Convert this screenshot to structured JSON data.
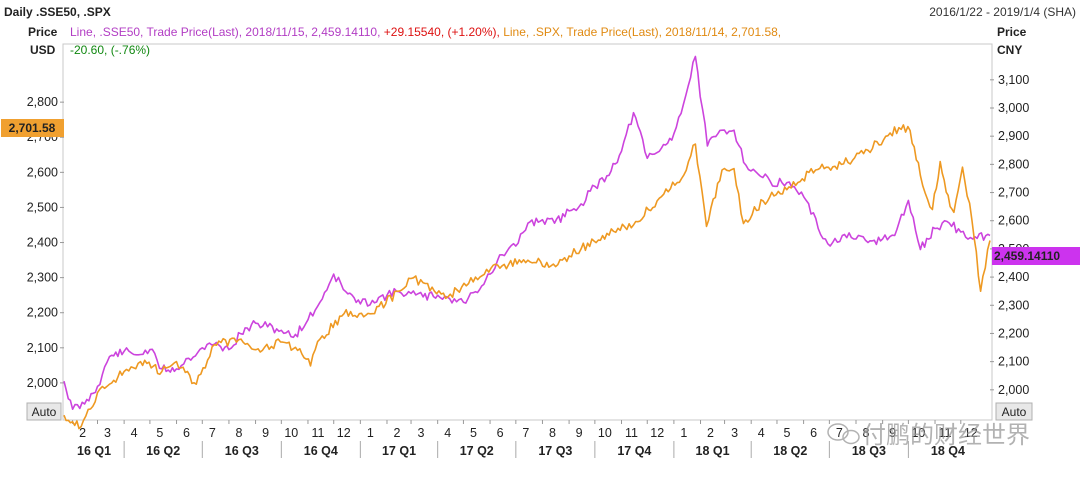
{
  "header": {
    "title": "Daily .SSE50, .SPX",
    "date_range": "2016/1/22 - 2019/1/4 (SHA)"
  },
  "left_axis": {
    "label1": "Price",
    "label2": "USD",
    "auto": "Auto"
  },
  "right_axis": {
    "label1": "Price",
    "label2": "CNY",
    "auto": "Auto"
  },
  "legend": {
    "sse_part1": "Line, .SSE50, Trade Price(Last), 2018/11/15, 2,459.14110, ",
    "sse_change": "+29.15540, (+1.20%), ",
    "spx_part1": "Line, .SPX, Trade Price(Last), 2018/11/14, 2,701.58,",
    "spx_change": "-20.60, (-.76%)"
  },
  "badges": {
    "spx_last": "2,701.58",
    "sse_last": "2,459.14110"
  },
  "watermark": "付鹏的财经世界",
  "colors": {
    "sse": "#cc44dd",
    "spx": "#ee9922",
    "sse_text": "#b23dc4",
    "spx_text": "#e08a12",
    "up": "#dd1111",
    "down": "#118811",
    "badge_spx": "#f0a030",
    "badge_sse": "#cc33ee"
  },
  "chart_data": {
    "type": "line",
    "title": "Daily .SSE50, .SPX",
    "date_range": "2016/1/22 - 2019/1/4",
    "left_axis": {
      "unit": "USD",
      "ylim": [
        1900,
        2960
      ],
      "ticks": [
        "2,000",
        "2,100",
        "2,200",
        "2,300",
        "2,400",
        "2,500",
        "2,600",
        "2,700",
        "2,800"
      ]
    },
    "right_axis": {
      "unit": "CNY",
      "ylim": [
        1900,
        3220
      ],
      "ticks": [
        "2,000",
        "2,100",
        "2,200",
        "2,300",
        "2,400",
        "2,500",
        "2,600",
        "2,700",
        "2,800",
        "2,900",
        "3,000",
        "3,100"
      ]
    },
    "month_ticks": [
      "2",
      "3",
      "4",
      "5",
      "6",
      "7",
      "8",
      "9",
      "10",
      "11",
      "12",
      "1",
      "2",
      "3",
      "4",
      "5",
      "6",
      "7",
      "8",
      "9",
      "10",
      "11",
      "12",
      "1",
      "2",
      "3",
      "4",
      "5",
      "6",
      "7",
      "8",
      "9",
      "10",
      "11",
      "12"
    ],
    "quarters": [
      "16 Q1",
      "16 Q2",
      "16 Q3",
      "16 Q4",
      "17 Q1",
      "17 Q2",
      "17 Q3",
      "17 Q4",
      "18 Q1",
      "18 Q2",
      "18 Q3",
      "18 Q4"
    ],
    "x_start": "2016-01-22",
    "x_end": "2019-01-04",
    "series": [
      {
        "name": ".SSE50",
        "axis": "left",
        "points": [
          [
            "2016-01-22",
            2005
          ],
          [
            "2016-02-01",
            1925
          ],
          [
            "2016-02-15",
            1940
          ],
          [
            "2016-03-01",
            1990
          ],
          [
            "2016-03-15",
            2075
          ],
          [
            "2016-04-01",
            2090
          ],
          [
            "2016-04-15",
            2080
          ],
          [
            "2016-05-01",
            2095
          ],
          [
            "2016-05-15",
            2040
          ],
          [
            "2016-06-01",
            2040
          ],
          [
            "2016-06-15",
            2070
          ],
          [
            "2016-07-01",
            2100
          ],
          [
            "2016-07-15",
            2110
          ],
          [
            "2016-08-01",
            2095
          ],
          [
            "2016-08-15",
            2140
          ],
          [
            "2016-09-01",
            2170
          ],
          [
            "2016-09-15",
            2160
          ],
          [
            "2016-10-01",
            2150
          ],
          [
            "2016-10-15",
            2130
          ],
          [
            "2016-11-01",
            2180
          ],
          [
            "2016-11-15",
            2230
          ],
          [
            "2016-12-01",
            2310
          ],
          [
            "2016-12-15",
            2260
          ],
          [
            "2017-01-01",
            2225
          ],
          [
            "2017-01-15",
            2235
          ],
          [
            "2017-02-01",
            2250
          ],
          [
            "2017-02-15",
            2260
          ],
          [
            "2017-03-01",
            2255
          ],
          [
            "2017-03-15",
            2245
          ],
          [
            "2017-04-01",
            2250
          ],
          [
            "2017-04-15",
            2240
          ],
          [
            "2017-05-01",
            2230
          ],
          [
            "2017-05-15",
            2260
          ],
          [
            "2017-06-01",
            2310
          ],
          [
            "2017-06-15",
            2365
          ],
          [
            "2017-07-01",
            2390
          ],
          [
            "2017-07-15",
            2455
          ],
          [
            "2017-08-01",
            2465
          ],
          [
            "2017-08-15",
            2455
          ],
          [
            "2017-09-01",
            2490
          ],
          [
            "2017-09-15",
            2510
          ],
          [
            "2017-10-01",
            2560
          ],
          [
            "2017-10-15",
            2590
          ],
          [
            "2017-11-01",
            2660
          ],
          [
            "2017-11-15",
            2770
          ],
          [
            "2017-12-01",
            2640
          ],
          [
            "2017-12-15",
            2660
          ],
          [
            "2018-01-01",
            2710
          ],
          [
            "2018-01-15",
            2820
          ],
          [
            "2018-01-26",
            2930
          ],
          [
            "2018-02-09",
            2675
          ],
          [
            "2018-02-26",
            2720
          ],
          [
            "2018-03-12",
            2720
          ],
          [
            "2018-03-26",
            2620
          ],
          [
            "2018-04-09",
            2595
          ],
          [
            "2018-04-23",
            2575
          ],
          [
            "2018-05-07",
            2570
          ],
          [
            "2018-05-21",
            2560
          ],
          [
            "2018-06-04",
            2520
          ],
          [
            "2018-06-18",
            2440
          ],
          [
            "2018-07-02",
            2390
          ],
          [
            "2018-07-16",
            2420
          ],
          [
            "2018-08-01",
            2410
          ],
          [
            "2018-08-15",
            2400
          ],
          [
            "2018-09-01",
            2410
          ],
          [
            "2018-09-15",
            2420
          ],
          [
            "2018-10-01",
            2520
          ],
          [
            "2018-10-15",
            2380
          ],
          [
            "2018-11-01",
            2440
          ],
          [
            "2018-11-15",
            2460
          ],
          [
            "2018-12-01",
            2430
          ],
          [
            "2018-12-15",
            2410
          ],
          [
            "2019-01-04",
            2420
          ]
        ]
      },
      {
        "name": ".SPX",
        "axis": "right",
        "points": [
          [
            "2016-01-22",
            1910
          ],
          [
            "2016-02-11",
            1870
          ],
          [
            "2016-03-01",
            1990
          ],
          [
            "2016-03-15",
            2020
          ],
          [
            "2016-04-01",
            2065
          ],
          [
            "2016-04-20",
            2100
          ],
          [
            "2016-05-15",
            2065
          ],
          [
            "2016-06-01",
            2100
          ],
          [
            "2016-06-24",
            2020
          ],
          [
            "2016-07-15",
            2160
          ],
          [
            "2016-08-15",
            2180
          ],
          [
            "2016-09-09",
            2140
          ],
          [
            "2016-09-30",
            2170
          ],
          [
            "2016-10-20",
            2140
          ],
          [
            "2016-11-04",
            2085
          ],
          [
            "2016-11-15",
            2180
          ],
          [
            "2016-12-13",
            2270
          ],
          [
            "2017-01-15",
            2270
          ],
          [
            "2017-02-15",
            2350
          ],
          [
            "2017-03-01",
            2395
          ],
          [
            "2017-03-15",
            2380
          ],
          [
            "2017-04-13",
            2330
          ],
          [
            "2017-05-15",
            2400
          ],
          [
            "2017-06-15",
            2440
          ],
          [
            "2017-07-15",
            2460
          ],
          [
            "2017-08-11",
            2440
          ],
          [
            "2017-09-01",
            2475
          ],
          [
            "2017-09-15",
            2500
          ],
          [
            "2017-10-15",
            2555
          ],
          [
            "2017-11-15",
            2585
          ],
          [
            "2017-12-15",
            2680
          ],
          [
            "2018-01-10",
            2750
          ],
          [
            "2018-01-26",
            2872
          ],
          [
            "2018-02-08",
            2580
          ],
          [
            "2018-02-26",
            2780
          ],
          [
            "2018-03-12",
            2785
          ],
          [
            "2018-03-23",
            2590
          ],
          [
            "2018-04-15",
            2670
          ],
          [
            "2018-05-15",
            2720
          ],
          [
            "2018-06-15",
            2780
          ],
          [
            "2018-07-15",
            2800
          ],
          [
            "2018-08-15",
            2850
          ],
          [
            "2018-09-20",
            2930
          ],
          [
            "2018-10-03",
            2920
          ],
          [
            "2018-10-15",
            2760
          ],
          [
            "2018-10-29",
            2640
          ],
          [
            "2018-11-07",
            2810
          ],
          [
            "2018-11-14",
            2701.58
          ],
          [
            "2018-11-23",
            2630
          ],
          [
            "2018-12-03",
            2790
          ],
          [
            "2018-12-14",
            2600
          ],
          [
            "2018-12-24",
            2350
          ],
          [
            "2019-01-04",
            2530
          ]
        ]
      }
    ]
  }
}
